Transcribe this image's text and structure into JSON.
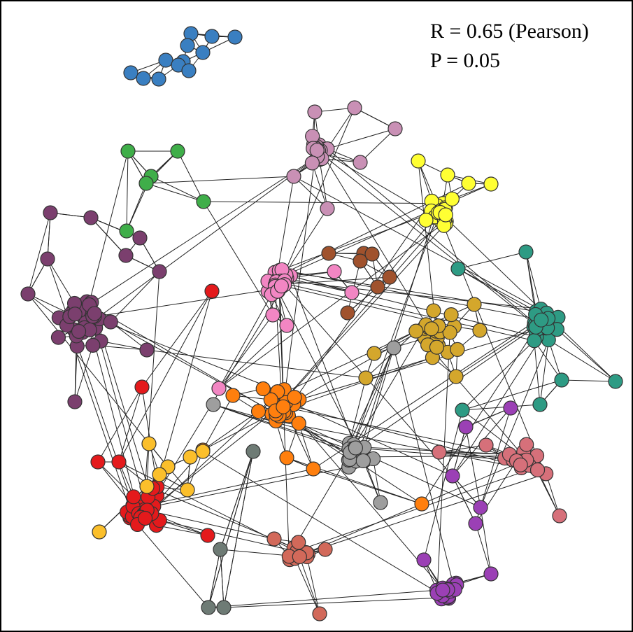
{
  "annotation": {
    "line1": "R = 0.65 (Pearson)",
    "line2": "P = 0.05"
  }
}
